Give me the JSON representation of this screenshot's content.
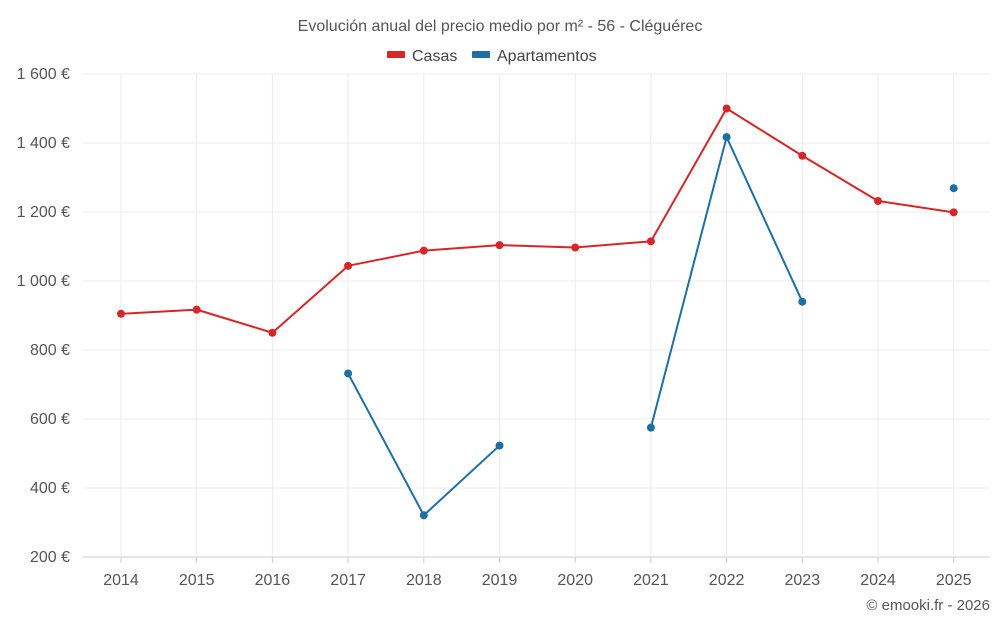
{
  "chart_data": {
    "type": "line",
    "title": "Evolución anual del precio medio por m² - 56 - Cléguérec",
    "categories": [
      "2014",
      "2015",
      "2016",
      "2017",
      "2018",
      "2019",
      "2020",
      "2021",
      "2022",
      "2023",
      "2024",
      "2025"
    ],
    "ylim": [
      200,
      1600
    ],
    "yticks": [
      200,
      400,
      600,
      800,
      1000,
      1200,
      1400,
      1600
    ],
    "ytick_labels": [
      "200 €",
      "400 €",
      "600 €",
      "800 €",
      "1 000 €",
      "1 200 €",
      "1 400 €",
      "1 600 €"
    ],
    "xlabel": "",
    "ylabel": "",
    "grid": true,
    "legend_position": "top-center",
    "series": [
      {
        "name": "Casas",
        "color": "#d62728",
        "values": [
          905,
          917,
          850,
          1044,
          1088,
          1104,
          1097,
          1115,
          1500,
          1363,
          1232,
          1199
        ]
      },
      {
        "name": "Apartamentos",
        "color": "#1f6fa5",
        "values": [
          null,
          null,
          null,
          732,
          321,
          523,
          null,
          575,
          1417,
          940,
          null,
          1269
        ]
      }
    ]
  },
  "credit": "© emooki.fr - 2026"
}
